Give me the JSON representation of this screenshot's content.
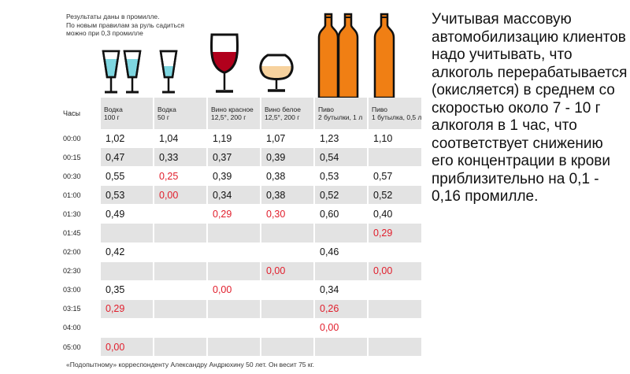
{
  "note_lines": [
    "Результаты даны в промилле.",
    "По новым правилам за руль садиться",
    "можно при 0,3 промилле"
  ],
  "colors": {
    "red": "#e11d2b",
    "row_shade": "#e3e3e3",
    "beer": "#f07f14",
    "wine": "#b1001c",
    "white_wine": "#f7d29e",
    "vodka": "#7ed6e0"
  },
  "time_header": "Часы",
  "columns": [
    {
      "name": "Водка",
      "amount": "100 г"
    },
    {
      "name": "Водка",
      "amount": "50 г"
    },
    {
      "name": "Вино красное",
      "amount": "12,5°, 200 г"
    },
    {
      "name": "Вино белое",
      "amount": "12,5°, 200 г"
    },
    {
      "name": "Пиво",
      "amount": "2 бутылки, 1 л"
    },
    {
      "name": "Пиво",
      "amount": "1 бутылка, 0,5 л"
    }
  ],
  "rows": [
    {
      "time": "00:00",
      "cells": [
        {
          "v": "1,02",
          "red": false
        },
        {
          "v": "1,04",
          "red": false
        },
        {
          "v": "1,19",
          "red": false
        },
        {
          "v": "1,07",
          "red": false
        },
        {
          "v": "1,23",
          "red": false
        },
        {
          "v": "1,10",
          "red": false
        }
      ]
    },
    {
      "time": "00:15",
      "cells": [
        {
          "v": "0,47",
          "red": false
        },
        {
          "v": "0,33",
          "red": false
        },
        {
          "v": "0,37",
          "red": false
        },
        {
          "v": "0,39",
          "red": false
        },
        {
          "v": "0,54",
          "red": false
        },
        {
          "v": "",
          "red": false
        }
      ]
    },
    {
      "time": "00:30",
      "cells": [
        {
          "v": "0,55",
          "red": false
        },
        {
          "v": "0,25",
          "red": true
        },
        {
          "v": "0,39",
          "red": false
        },
        {
          "v": "0,38",
          "red": false
        },
        {
          "v": "0,53",
          "red": false
        },
        {
          "v": "0,57",
          "red": false
        }
      ]
    },
    {
      "time": "01:00",
      "cells": [
        {
          "v": "0,53",
          "red": false
        },
        {
          "v": "0,00",
          "red": true
        },
        {
          "v": "0,34",
          "red": false
        },
        {
          "v": "0,38",
          "red": false
        },
        {
          "v": "0,52",
          "red": false
        },
        {
          "v": "0,52",
          "red": false
        }
      ]
    },
    {
      "time": "01:30",
      "cells": [
        {
          "v": "0,49",
          "red": false
        },
        {
          "v": "",
          "red": false
        },
        {
          "v": "0,29",
          "red": true
        },
        {
          "v": "0,30",
          "red": true
        },
        {
          "v": "0,60",
          "red": false
        },
        {
          "v": "0,40",
          "red": false
        }
      ]
    },
    {
      "time": "01:45",
      "cells": [
        {
          "v": "",
          "red": false
        },
        {
          "v": "",
          "red": false
        },
        {
          "v": "",
          "red": false
        },
        {
          "v": "",
          "red": false
        },
        {
          "v": "",
          "red": false
        },
        {
          "v": "0,29",
          "red": true
        }
      ]
    },
    {
      "time": "02:00",
      "cells": [
        {
          "v": "0,42",
          "red": false
        },
        {
          "v": "",
          "red": false
        },
        {
          "v": "",
          "red": false
        },
        {
          "v": "",
          "red": false
        },
        {
          "v": "0,46",
          "red": false
        },
        {
          "v": "",
          "red": false
        }
      ]
    },
    {
      "time": "02:30",
      "cells": [
        {
          "v": "",
          "red": false
        },
        {
          "v": "",
          "red": false
        },
        {
          "v": "",
          "red": false
        },
        {
          "v": "0,00",
          "red": true
        },
        {
          "v": "",
          "red": false
        },
        {
          "v": "0,00",
          "red": true
        }
      ]
    },
    {
      "time": "03:00",
      "cells": [
        {
          "v": "0,35",
          "red": false
        },
        {
          "v": "",
          "red": false
        },
        {
          "v": "0,00",
          "red": true
        },
        {
          "v": "",
          "red": false
        },
        {
          "v": "0,34",
          "red": false
        },
        {
          "v": "",
          "red": false
        }
      ]
    },
    {
      "time": "03:15",
      "cells": [
        {
          "v": "0,29",
          "red": true
        },
        {
          "v": "",
          "red": false
        },
        {
          "v": "",
          "red": false
        },
        {
          "v": "",
          "red": false
        },
        {
          "v": "0,26",
          "red": true
        },
        {
          "v": "",
          "red": false
        }
      ]
    },
    {
      "time": "04:00",
      "cells": [
        {
          "v": "",
          "red": false
        },
        {
          "v": "",
          "red": false
        },
        {
          "v": "",
          "red": false
        },
        {
          "v": "",
          "red": false
        },
        {
          "v": "0,00",
          "red": true
        },
        {
          "v": "",
          "red": false
        }
      ]
    },
    {
      "time": "05:00",
      "cells": [
        {
          "v": "0,00",
          "red": true
        },
        {
          "v": "",
          "red": false
        },
        {
          "v": "",
          "red": false
        },
        {
          "v": "",
          "red": false
        },
        {
          "v": "",
          "red": false
        },
        {
          "v": "",
          "red": false
        }
      ]
    }
  ],
  "footnote": "«Подопытному» корреспонденту Александру Андрюхину 50 лет. Он весит 75 кг.",
  "side_text": "Учитывая массовую автомобилизацию клиентов надо учитывать, что алкоголь перерабатывается (окисляется) в среднем со скоростью около 7 - 10 г алкоголя в 1 час, что соответствует снижению его концентрации в крови приблизительно на 0,1 - 0,16 промилле."
}
